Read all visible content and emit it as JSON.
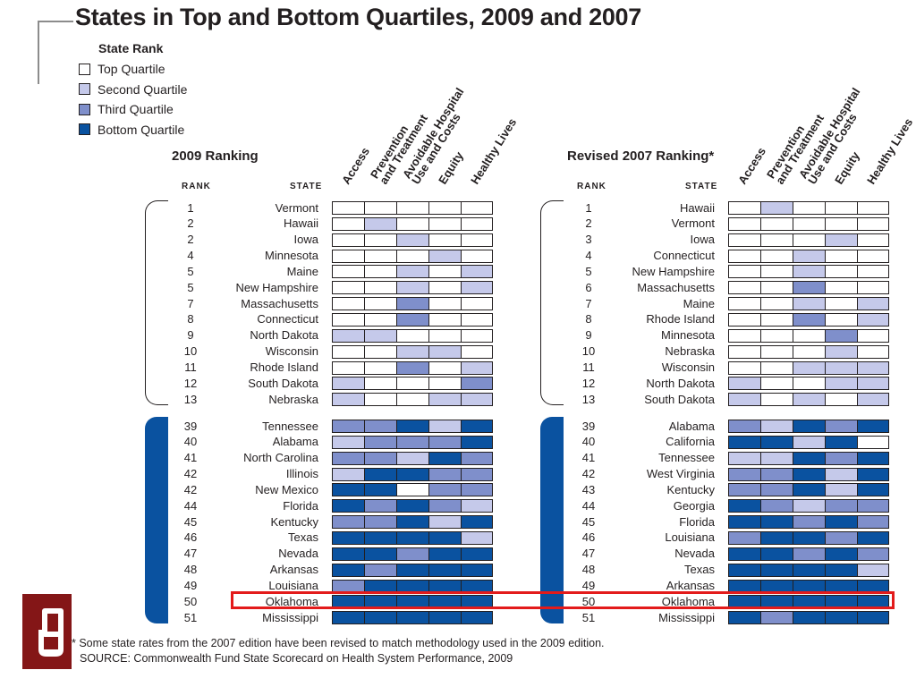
{
  "title": "States in Top and Bottom Quartiles, 2009 and 2007",
  "legend": {
    "title": "State Rank",
    "items": [
      {
        "label": "Top Quartile",
        "color": "#ffffff"
      },
      {
        "label": "Second Quartile",
        "color": "#c5c9ea"
      },
      {
        "label": "Third Quartile",
        "color": "#7f8fcb"
      },
      {
        "label": "Bottom Quartile",
        "color": "#0a52a0"
      }
    ]
  },
  "chart_data": {
    "type": "table",
    "metrics": [
      "Access",
      "Prevention and Treatment",
      "Avoidable Hospital Use and Costs",
      "Equity",
      "Healthy Lives"
    ],
    "quartile_scale": {
      "1": "Top Quartile",
      "2": "Second Quartile",
      "3": "Third Quartile",
      "4": "Bottom Quartile"
    },
    "panels": [
      {
        "title": "2009 Ranking",
        "rank_header": "RANK",
        "state_header": "STATE",
        "top_rows": [
          {
            "rank": "1",
            "state": "Vermont",
            "quartiles": [
              1,
              1,
              1,
              1,
              1
            ]
          },
          {
            "rank": "2",
            "state": "Hawaii",
            "quartiles": [
              1,
              2,
              1,
              1,
              1
            ]
          },
          {
            "rank": "2",
            "state": "Iowa",
            "quartiles": [
              1,
              1,
              2,
              1,
              1
            ]
          },
          {
            "rank": "4",
            "state": "Minnesota",
            "quartiles": [
              1,
              1,
              1,
              2,
              1
            ]
          },
          {
            "rank": "5",
            "state": "Maine",
            "quartiles": [
              1,
              1,
              2,
              1,
              2
            ]
          },
          {
            "rank": "5",
            "state": "New Hampshire",
            "quartiles": [
              1,
              1,
              2,
              1,
              2
            ]
          },
          {
            "rank": "7",
            "state": "Massachusetts",
            "quartiles": [
              1,
              1,
              3,
              1,
              1
            ]
          },
          {
            "rank": "8",
            "state": "Connecticut",
            "quartiles": [
              1,
              1,
              3,
              1,
              1
            ]
          },
          {
            "rank": "9",
            "state": "North Dakota",
            "quartiles": [
              2,
              2,
              1,
              1,
              1
            ]
          },
          {
            "rank": "10",
            "state": "Wisconsin",
            "quartiles": [
              1,
              1,
              2,
              2,
              1
            ]
          },
          {
            "rank": "11",
            "state": "Rhode Island",
            "quartiles": [
              1,
              1,
              3,
              1,
              2
            ]
          },
          {
            "rank": "12",
            "state": "South Dakota",
            "quartiles": [
              2,
              1,
              1,
              1,
              3
            ]
          },
          {
            "rank": "13",
            "state": "Nebraska",
            "quartiles": [
              2,
              1,
              1,
              2,
              2
            ]
          }
        ],
        "bottom_rows": [
          {
            "rank": "39",
            "state": "Tennessee",
            "quartiles": [
              3,
              3,
              4,
              2,
              4
            ]
          },
          {
            "rank": "40",
            "state": "Alabama",
            "quartiles": [
              2,
              3,
              3,
              3,
              4
            ]
          },
          {
            "rank": "41",
            "state": "North Carolina",
            "quartiles": [
              3,
              3,
              2,
              4,
              3
            ]
          },
          {
            "rank": "42",
            "state": "Illinois",
            "quartiles": [
              2,
              4,
              4,
              3,
              3
            ]
          },
          {
            "rank": "42",
            "state": "New Mexico",
            "quartiles": [
              4,
              4,
              1,
              3,
              3
            ]
          },
          {
            "rank": "44",
            "state": "Florida",
            "quartiles": [
              4,
              3,
              4,
              3,
              2
            ]
          },
          {
            "rank": "45",
            "state": "Kentucky",
            "quartiles": [
              3,
              3,
              4,
              2,
              4
            ]
          },
          {
            "rank": "46",
            "state": "Texas",
            "quartiles": [
              4,
              4,
              4,
              4,
              2
            ]
          },
          {
            "rank": "47",
            "state": "Nevada",
            "quartiles": [
              4,
              4,
              3,
              4,
              4
            ]
          },
          {
            "rank": "48",
            "state": "Arkansas",
            "quartiles": [
              4,
              3,
              4,
              4,
              4
            ]
          },
          {
            "rank": "49",
            "state": "Louisiana",
            "quartiles": [
              3,
              4,
              4,
              4,
              4
            ]
          },
          {
            "rank": "50",
            "state": "Oklahoma",
            "quartiles": [
              4,
              4,
              4,
              4,
              4
            ]
          },
          {
            "rank": "51",
            "state": "Mississippi",
            "quartiles": [
              4,
              4,
              4,
              4,
              4
            ]
          }
        ]
      },
      {
        "title": "Revised 2007 Ranking*",
        "rank_header": "RANK",
        "state_header": "STATE",
        "top_rows": [
          {
            "rank": "1",
            "state": "Hawaii",
            "quartiles": [
              1,
              2,
              1,
              1,
              1
            ]
          },
          {
            "rank": "2",
            "state": "Vermont",
            "quartiles": [
              1,
              1,
              1,
              1,
              1
            ]
          },
          {
            "rank": "3",
            "state": "Iowa",
            "quartiles": [
              1,
              1,
              1,
              2,
              1
            ]
          },
          {
            "rank": "4",
            "state": "Connecticut",
            "quartiles": [
              1,
              1,
              2,
              1,
              1
            ]
          },
          {
            "rank": "5",
            "state": "New Hampshire",
            "quartiles": [
              1,
              1,
              2,
              1,
              1
            ]
          },
          {
            "rank": "6",
            "state": "Massachusetts",
            "quartiles": [
              1,
              1,
              3,
              1,
              1
            ]
          },
          {
            "rank": "7",
            "state": "Maine",
            "quartiles": [
              1,
              1,
              2,
              1,
              2
            ]
          },
          {
            "rank": "8",
            "state": "Rhode Island",
            "quartiles": [
              1,
              1,
              3,
              1,
              2
            ]
          },
          {
            "rank": "9",
            "state": "Minnesota",
            "quartiles": [
              1,
              1,
              1,
              3,
              1
            ]
          },
          {
            "rank": "10",
            "state": "Nebraska",
            "quartiles": [
              1,
              1,
              1,
              2,
              1
            ]
          },
          {
            "rank": "11",
            "state": "Wisconsin",
            "quartiles": [
              1,
              1,
              2,
              2,
              2
            ]
          },
          {
            "rank": "12",
            "state": "North Dakota",
            "quartiles": [
              2,
              1,
              1,
              2,
              2
            ]
          },
          {
            "rank": "13",
            "state": "South Dakota",
            "quartiles": [
              2,
              1,
              2,
              1,
              2
            ]
          }
        ],
        "bottom_rows": [
          {
            "rank": "39",
            "state": "Alabama",
            "quartiles": [
              3,
              2,
              4,
              3,
              4
            ]
          },
          {
            "rank": "40",
            "state": "California",
            "quartiles": [
              4,
              4,
              2,
              4,
              1
            ]
          },
          {
            "rank": "41",
            "state": "Tennessee",
            "quartiles": [
              2,
              2,
              4,
              3,
              4
            ]
          },
          {
            "rank": "42",
            "state": "West Virginia",
            "quartiles": [
              3,
              3,
              4,
              2,
              4
            ]
          },
          {
            "rank": "43",
            "state": "Kentucky",
            "quartiles": [
              3,
              3,
              4,
              2,
              4
            ]
          },
          {
            "rank": "44",
            "state": "Georgia",
            "quartiles": [
              4,
              3,
              2,
              3,
              3
            ]
          },
          {
            "rank": "45",
            "state": "Florida",
            "quartiles": [
              4,
              4,
              3,
              4,
              3
            ]
          },
          {
            "rank": "46",
            "state": "Louisiana",
            "quartiles": [
              3,
              4,
              4,
              3,
              4
            ]
          },
          {
            "rank": "47",
            "state": "Nevada",
            "quartiles": [
              4,
              4,
              3,
              4,
              3
            ]
          },
          {
            "rank": "48",
            "state": "Texas",
            "quartiles": [
              4,
              4,
              4,
              4,
              2
            ]
          },
          {
            "rank": "49",
            "state": "Arkansas",
            "quartiles": [
              4,
              4,
              4,
              4,
              4
            ]
          },
          {
            "rank": "50",
            "state": "Oklahoma",
            "quartiles": [
              4,
              4,
              4,
              4,
              4
            ]
          },
          {
            "rank": "51",
            "state": "Mississippi",
            "quartiles": [
              4,
              3,
              4,
              4,
              4
            ]
          }
        ]
      }
    ],
    "highlighted_state": "Oklahoma"
  },
  "footnote": "* Some state rates from the 2007 edition have been revised to match methodology used in the 2009 edition.",
  "source": "SOURCE: Commonwealth Fund State Scorecard on Health System Performance, 2009",
  "highlight_color": "#e31b1b",
  "logo": {
    "name": "OU logo",
    "letters": "OU",
    "color": "#841617"
  }
}
